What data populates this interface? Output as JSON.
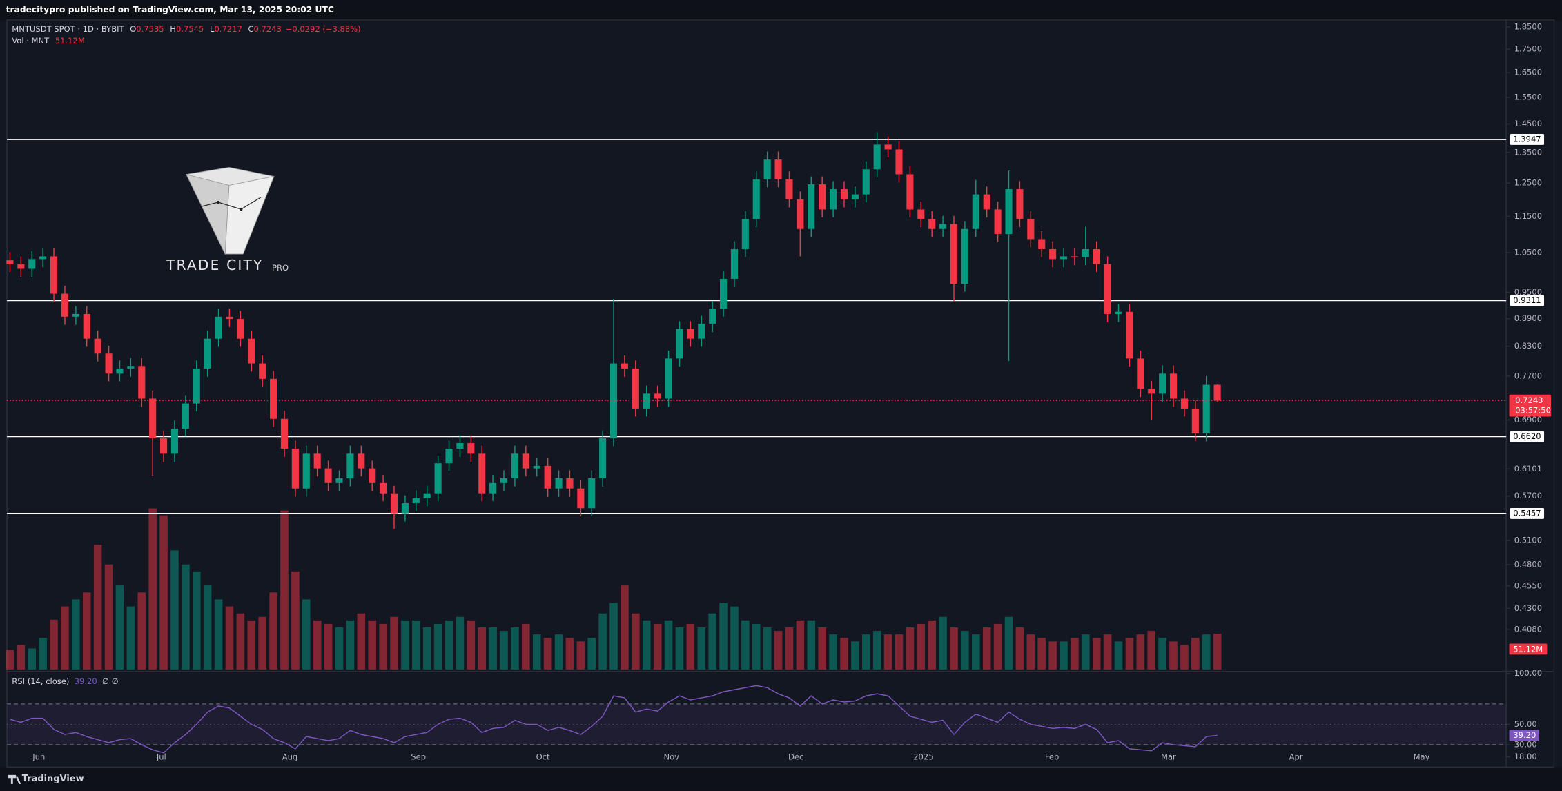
{
  "header": {
    "published": "tradecitypro published on TradingView.com, Mar 13, 2025 20:02 UTC",
    "symbol": "MNTUSDT SPOT · 1D · BYBIT",
    "ohlc": [
      {
        "label": "O",
        "value": 0.7535
      },
      {
        "label": "H",
        "value": 0.7545
      },
      {
        "label": "L",
        "value": 0.7217
      },
      {
        "label": "C",
        "value": 0.7243
      }
    ],
    "change": "−0.0292 (−3.88%)"
  },
  "watermark": {
    "title": "TRADE CITY",
    "sub": "PRO"
  },
  "footer": "TradingView",
  "chart_data": {
    "type": "candlestick",
    "log_scale": true,
    "up_color": "#089981",
    "down_color": "#f23645",
    "ylim": [
      0.369,
      1.882
    ],
    "yticks": [
      {
        "value": 1.85,
        "label": "1.8500"
      },
      {
        "value": 1.75,
        "label": "1.7500"
      },
      {
        "value": 1.65,
        "label": "1.6500"
      },
      {
        "value": 1.55,
        "label": "1.5500"
      },
      {
        "value": 1.45,
        "label": "1.4500"
      },
      {
        "value": 1.35,
        "label": "1.3500"
      },
      {
        "value": 1.25,
        "label": "1.2500"
      },
      {
        "value": 1.15,
        "label": "1.1500"
      },
      {
        "value": 1.05,
        "label": "1.0500"
      },
      {
        "value": 0.95,
        "label": "0.9500"
      },
      {
        "value": 0.89,
        "label": "0.8900"
      },
      {
        "value": 0.83,
        "label": "0.8300"
      },
      {
        "value": 0.77,
        "label": "0.7700"
      },
      {
        "value": 0.69,
        "label": "0.6900"
      },
      {
        "value": 0.6101,
        "label": "0.6101"
      },
      {
        "value": 0.57,
        "label": "0.5700"
      },
      {
        "value": 0.51,
        "label": "0.5100"
      },
      {
        "value": 0.48,
        "label": "0.4800"
      },
      {
        "value": 0.455,
        "label": "0.4550"
      },
      {
        "value": 0.43,
        "label": "0.4300"
      },
      {
        "value": 0.408,
        "label": "0.4080"
      }
    ],
    "levels": [
      1.3947,
      0.9311,
      {
        "value": 0.662,
        "label": "0.6620"
      },
      0.5457
    ],
    "countdown": "03:57:50",
    "xticks": [
      "Jun",
      "Jul",
      "Aug",
      "Sep",
      "Oct",
      "Nov",
      "Dec",
      "2025",
      "Feb",
      "Mar",
      "Apr",
      "May"
    ],
    "candles": [
      [
        1.03,
        1.051,
        1.0,
        1.02
      ],
      [
        1.02,
        1.04,
        0.988,
        1.008
      ],
      [
        1.008,
        1.054,
        0.988,
        1.033
      ],
      [
        1.033,
        1.061,
        1.012,
        1.04
      ],
      [
        1.04,
        1.061,
        0.928,
        0.947
      ],
      [
        0.947,
        0.966,
        0.876,
        0.894
      ],
      [
        0.894,
        0.918,
        0.876,
        0.9
      ],
      [
        0.9,
        0.918,
        0.829,
        0.846
      ],
      [
        0.846,
        0.863,
        0.799,
        0.815
      ],
      [
        0.815,
        0.831,
        0.76,
        0.775
      ],
      [
        0.775,
        0.801,
        0.76,
        0.785
      ],
      [
        0.785,
        0.806,
        0.769,
        0.79
      ],
      [
        0.79,
        0.806,
        0.713,
        0.728
      ],
      [
        0.728,
        0.743,
        0.6,
        0.659
      ],
      [
        0.659,
        0.672,
        0.621,
        0.634
      ],
      [
        0.634,
        0.689,
        0.621,
        0.675
      ],
      [
        0.675,
        0.733,
        0.662,
        0.719
      ],
      [
        0.719,
        0.801,
        0.705,
        0.785
      ],
      [
        0.785,
        0.863,
        0.769,
        0.846
      ],
      [
        0.846,
        0.912,
        0.829,
        0.894
      ],
      [
        0.894,
        0.912,
        0.871,
        0.889
      ],
      [
        0.889,
        0.907,
        0.829,
        0.846
      ],
      [
        0.846,
        0.863,
        0.779,
        0.795
      ],
      [
        0.795,
        0.811,
        0.75,
        0.765
      ],
      [
        0.765,
        0.78,
        0.678,
        0.692
      ],
      [
        0.692,
        0.706,
        0.629,
        0.642
      ],
      [
        0.642,
        0.655,
        0.569,
        0.581
      ],
      [
        0.581,
        0.647,
        0.569,
        0.634
      ],
      [
        0.634,
        0.647,
        0.599,
        0.611
      ],
      [
        0.611,
        0.623,
        0.577,
        0.589
      ],
      [
        0.589,
        0.608,
        0.577,
        0.596
      ],
      [
        0.596,
        0.647,
        0.584,
        0.634
      ],
      [
        0.634,
        0.647,
        0.599,
        0.611
      ],
      [
        0.611,
        0.623,
        0.577,
        0.589
      ],
      [
        0.589,
        0.601,
        0.563,
        0.574
      ],
      [
        0.574,
        0.585,
        0.525,
        0.546
      ],
      [
        0.546,
        0.571,
        0.535,
        0.56
      ],
      [
        0.56,
        0.578,
        0.549,
        0.567
      ],
      [
        0.567,
        0.585,
        0.556,
        0.574
      ],
      [
        0.574,
        0.631,
        0.563,
        0.619
      ],
      [
        0.619,
        0.655,
        0.607,
        0.642
      ],
      [
        0.642,
        0.664,
        0.629,
        0.651
      ],
      [
        0.651,
        0.664,
        0.621,
        0.634
      ],
      [
        0.634,
        0.647,
        0.563,
        0.574
      ],
      [
        0.574,
        0.601,
        0.563,
        0.589
      ],
      [
        0.589,
        0.608,
        0.577,
        0.596
      ],
      [
        0.596,
        0.647,
        0.584,
        0.634
      ],
      [
        0.634,
        0.647,
        0.599,
        0.611
      ],
      [
        0.611,
        0.627,
        0.599,
        0.615
      ],
      [
        0.615,
        0.627,
        0.569,
        0.581
      ],
      [
        0.581,
        0.608,
        0.569,
        0.596
      ],
      [
        0.596,
        0.608,
        0.569,
        0.581
      ],
      [
        0.581,
        0.593,
        0.542,
        0.553
      ],
      [
        0.553,
        0.608,
        0.542,
        0.596
      ],
      [
        0.596,
        0.672,
        0.584,
        0.659
      ],
      [
        0.659,
        0.935,
        0.646,
        0.795
      ],
      [
        0.795,
        0.811,
        0.769,
        0.785
      ],
      [
        0.785,
        0.801,
        0.696,
        0.71
      ],
      [
        0.71,
        0.752,
        0.696,
        0.737
      ],
      [
        0.737,
        0.752,
        0.713,
        0.728
      ],
      [
        0.728,
        0.821,
        0.713,
        0.805
      ],
      [
        0.805,
        0.884,
        0.789,
        0.867
      ],
      [
        0.867,
        0.884,
        0.829,
        0.846
      ],
      [
        0.846,
        0.896,
        0.829,
        0.878
      ],
      [
        0.878,
        0.93,
        0.86,
        0.912
      ],
      [
        0.912,
        1.003,
        0.894,
        0.983
      ],
      [
        0.983,
        1.08,
        0.963,
        1.059
      ],
      [
        1.059,
        1.165,
        1.038,
        1.142
      ],
      [
        1.142,
        1.287,
        1.119,
        1.262
      ],
      [
        1.262,
        1.353,
        1.237,
        1.326
      ],
      [
        1.326,
        1.353,
        1.237,
        1.262
      ],
      [
        1.262,
        1.287,
        1.176,
        1.2
      ],
      [
        1.2,
        1.224,
        1.04,
        1.114
      ],
      [
        1.114,
        1.271,
        1.092,
        1.246
      ],
      [
        1.246,
        1.271,
        1.147,
        1.17
      ],
      [
        1.17,
        1.256,
        1.147,
        1.231
      ],
      [
        1.231,
        1.256,
        1.176,
        1.2
      ],
      [
        1.2,
        1.239,
        1.176,
        1.215
      ],
      [
        1.215,
        1.32,
        1.191,
        1.294
      ],
      [
        1.294,
        1.42,
        1.268,
        1.377
      ],
      [
        1.377,
        1.405,
        1.333,
        1.36
      ],
      [
        1.36,
        1.387,
        1.252,
        1.278
      ],
      [
        1.278,
        1.304,
        1.147,
        1.17
      ],
      [
        1.17,
        1.193,
        1.119,
        1.142
      ],
      [
        1.142,
        1.165,
        1.092,
        1.114
      ],
      [
        1.114,
        1.151,
        1.092,
        1.128
      ],
      [
        1.128,
        1.151,
        0.93,
        0.971
      ],
      [
        0.971,
        1.136,
        0.952,
        1.114
      ],
      [
        1.114,
        1.26,
        1.092,
        1.215
      ],
      [
        1.215,
        1.239,
        1.147,
        1.17
      ],
      [
        1.17,
        1.193,
        1.078,
        1.1
      ],
      [
        1.1,
        1.29,
        0.8,
        1.231
      ],
      [
        1.231,
        1.256,
        1.119,
        1.142
      ],
      [
        1.142,
        1.165,
        1.064,
        1.086
      ],
      [
        1.086,
        1.108,
        1.038,
        1.059
      ],
      [
        1.059,
        1.08,
        1.012,
        1.033
      ],
      [
        1.033,
        1.061,
        1.012,
        1.04
      ],
      [
        1.04,
        1.061,
        1.017,
        1.038
      ],
      [
        1.038,
        1.12,
        1.017,
        1.059
      ],
      [
        1.059,
        1.08,
        1.0,
        1.02
      ],
      [
        1.02,
        1.04,
        0.882,
        0.9
      ],
      [
        0.9,
        0.923,
        0.882,
        0.905
      ],
      [
        0.905,
        0.923,
        0.789,
        0.805
      ],
      [
        0.805,
        0.821,
        0.731,
        0.746
      ],
      [
        0.746,
        0.761,
        0.69,
        0.737
      ],
      [
        0.737,
        0.791,
        0.722,
        0.775
      ],
      [
        0.775,
        0.791,
        0.713,
        0.728
      ],
      [
        0.728,
        0.743,
        0.696,
        0.71
      ],
      [
        0.71,
        0.724,
        0.654,
        0.667
      ],
      [
        0.667,
        0.77,
        0.654,
        0.7535
      ],
      [
        0.7535,
        0.7545,
        0.7217,
        0.7243
      ]
    ],
    "volume": {
      "name": "Vol · MNT",
      "ylim": [
        0,
        330
      ],
      "last_label": "51.12M",
      "values": [
        28,
        35,
        30,
        45,
        71,
        90,
        100,
        110,
        178,
        150,
        120,
        90,
        110,
        230,
        220,
        170,
        150,
        140,
        120,
        100,
        90,
        80,
        70,
        75,
        110,
        227,
        140,
        100,
        70,
        65,
        60,
        70,
        80,
        70,
        65,
        75,
        70,
        70,
        60,
        65,
        70,
        75,
        70,
        60,
        60,
        55,
        60,
        65,
        50,
        45,
        50,
        45,
        40,
        45,
        80,
        95,
        120,
        80,
        70,
        65,
        70,
        60,
        65,
        60,
        80,
        95,
        90,
        70,
        65,
        60,
        55,
        60,
        70,
        70,
        60,
        50,
        45,
        40,
        50,
        55,
        50,
        50,
        60,
        65,
        70,
        75,
        60,
        55,
        50,
        60,
        65,
        75,
        60,
        50,
        45,
        40,
        40,
        45,
        50,
        45,
        50,
        40,
        45,
        50,
        55,
        45,
        40,
        35,
        45,
        50,
        51.12
      ]
    },
    "rsi": {
      "name": "RSI (14, close)",
      "extra": "∅ ∅",
      "color": "#7e57c2",
      "last_label": "39.20",
      "ylim": [
        10,
        100
      ],
      "bands": [
        30,
        70
      ],
      "mid": 50,
      "yticks": [
        {
          "value": 100,
          "label": "100.00"
        },
        {
          "value": 50,
          "label": "50.00"
        },
        {
          "value": 30,
          "label": "30.00"
        },
        {
          "value": 18,
          "label": "18.00"
        }
      ],
      "values": [
        55,
        52,
        56,
        56,
        45,
        40,
        42,
        38,
        35,
        32,
        35,
        36,
        30,
        25,
        22,
        32,
        40,
        50,
        62,
        68,
        66,
        58,
        50,
        45,
        36,
        32,
        26,
        38,
        36,
        34,
        36,
        44,
        40,
        38,
        36,
        32,
        38,
        40,
        42,
        50,
        55,
        56,
        52,
        42,
        46,
        47,
        54,
        50,
        50,
        44,
        47,
        44,
        40,
        48,
        58,
        78,
        76,
        62,
        65,
        63,
        72,
        78,
        74,
        76,
        78,
        82,
        84,
        86,
        88,
        86,
        80,
        76,
        68,
        78,
        70,
        74,
        72,
        73,
        78,
        80,
        78,
        68,
        58,
        55,
        52,
        54,
        40,
        52,
        60,
        56,
        52,
        62,
        55,
        50,
        48,
        46,
        47,
        46,
        50,
        45,
        32,
        34,
        26,
        25,
        24,
        32,
        30,
        29,
        28,
        38,
        39.2
      ]
    }
  }
}
